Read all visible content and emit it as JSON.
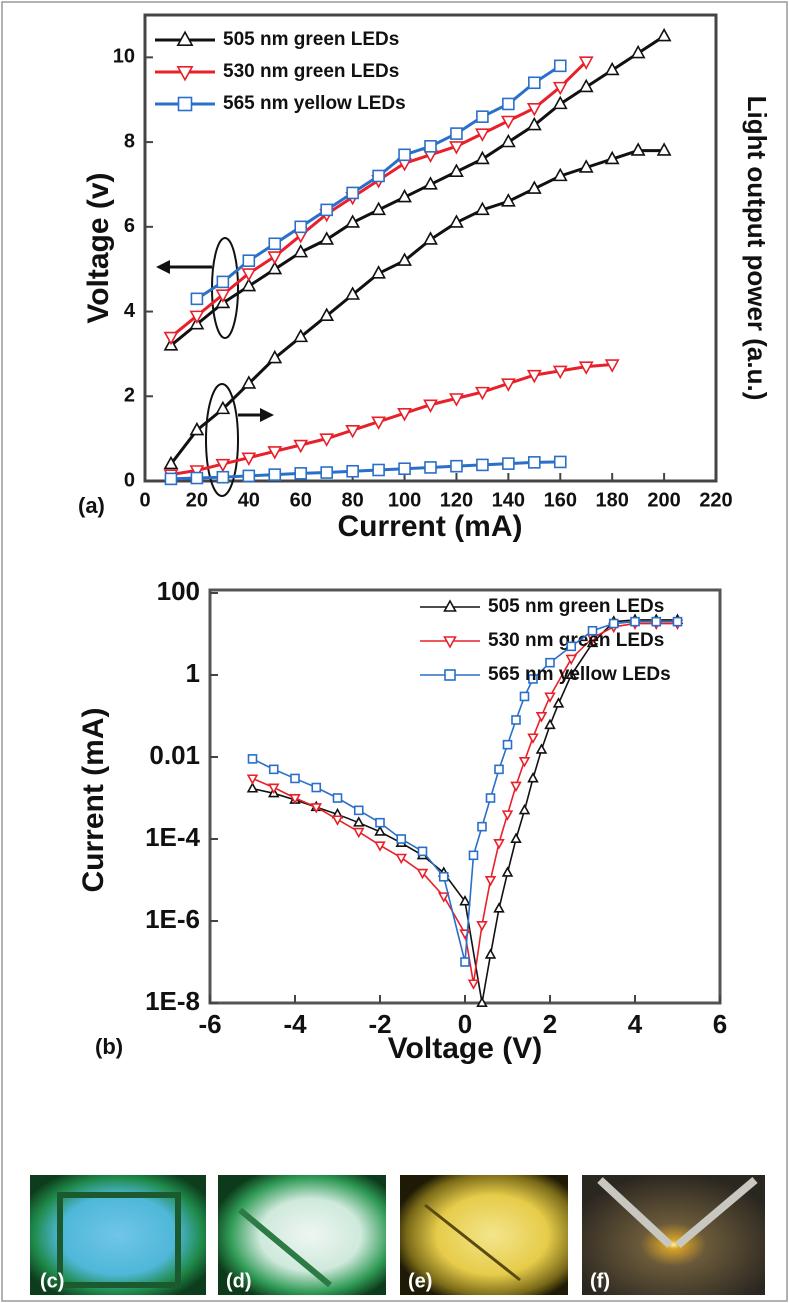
{
  "chart_data": [
    {
      "type": "line",
      "panel_label": "(a)",
      "x_label": "Current (mA)",
      "y_label": "Voltage (v)",
      "y2_label": "Light output power (a.u.)",
      "xlim": [
        0,
        220
      ],
      "xticks": [
        0,
        20,
        40,
        60,
        80,
        100,
        120,
        140,
        160,
        180,
        200,
        220
      ],
      "ylim": [
        0,
        11
      ],
      "yticks": [
        0,
        2,
        4,
        6,
        8,
        10
      ],
      "y2lim": [
        0,
        11
      ],
      "legend": "upper left",
      "x": [
        10,
        20,
        30,
        40,
        50,
        60,
        70,
        80,
        90,
        100,
        110,
        120,
        130,
        140,
        150,
        160,
        170,
        180,
        190,
        200
      ],
      "series": [
        {
          "name": "505 nm green LEDs",
          "color": "#111111",
          "marker": "triangle-up",
          "values": [
            3.2,
            3.7,
            4.2,
            4.6,
            5.0,
            5.4,
            5.7,
            6.1,
            6.4,
            6.7,
            7.0,
            7.3,
            7.6,
            8.0,
            8.4,
            8.9,
            9.3,
            9.7,
            10.1,
            10.5
          ]
        },
        {
          "name": "530 nm green LEDs",
          "color": "#e8202a",
          "marker": "triangle-down",
          "values": [
            3.4,
            3.9,
            4.4,
            4.9,
            5.3,
            5.8,
            6.3,
            6.7,
            7.1,
            7.5,
            7.7,
            7.9,
            8.2,
            8.5,
            8.8,
            9.3,
            9.9,
            null,
            null,
            null
          ]
        },
        {
          "name": "565 nm yellow LEDs",
          "color": "#2a6fc9",
          "marker": "square",
          "values": [
            null,
            4.3,
            4.7,
            5.2,
            5.6,
            6.0,
            6.4,
            6.8,
            7.2,
            7.7,
            7.9,
            8.2,
            8.6,
            8.9,
            9.4,
            9.8,
            null,
            null,
            null,
            null
          ]
        },
        {
          "axis": "y2",
          "color": "#111111",
          "marker": "triangle-up",
          "values": [
            0.4,
            1.2,
            1.7,
            2.3,
            2.9,
            3.4,
            3.9,
            4.4,
            4.9,
            5.2,
            5.7,
            6.1,
            6.4,
            6.6,
            6.9,
            7.2,
            7.4,
            7.6,
            7.8,
            7.8
          ]
        },
        {
          "axis": "y2",
          "color": "#e8202a",
          "marker": "triangle-down",
          "values": [
            0.15,
            0.25,
            0.4,
            0.55,
            0.7,
            0.85,
            1.0,
            1.2,
            1.4,
            1.6,
            1.8,
            1.95,
            2.1,
            2.3,
            2.5,
            2.6,
            2.7,
            2.75,
            null,
            null
          ]
        },
        {
          "axis": "y2",
          "color": "#2a6fc9",
          "marker": "square",
          "values": [
            0.05,
            0.07,
            0.09,
            0.12,
            0.15,
            0.18,
            0.2,
            0.23,
            0.26,
            0.29,
            0.32,
            0.35,
            0.38,
            0.41,
            0.44,
            0.45,
            null,
            null,
            null,
            null
          ]
        }
      ]
    },
    {
      "type": "line",
      "panel_label": "(b)",
      "x_label": "Voltage (V)",
      "y_label": "Current (mA)",
      "log_y": true,
      "xlim": [
        -6,
        6
      ],
      "xticks": [
        -6,
        -4,
        -2,
        0,
        2,
        4,
        6
      ],
      "ylim": [
        1e-08,
        100
      ],
      "yticks": [
        {
          "value": 1e-08,
          "label": "1E-8"
        },
        {
          "value": 1e-06,
          "label": "1E-6"
        },
        {
          "value": 0.0001,
          "label": "1E-4"
        },
        0.01,
        1,
        100
      ],
      "legend": "upper center",
      "series": [
        {
          "name": "505 nm green LEDs",
          "color": "#111111",
          "marker": "triangle-up",
          "x": [
            -5,
            -4.5,
            -4,
            -3.5,
            -3,
            -2.5,
            -2,
            -1.5,
            -1,
            -0.5,
            0,
            0.4,
            0.6,
            0.8,
            1,
            1.2,
            1.4,
            1.6,
            1.8,
            2,
            2.2,
            2.5,
            3,
            3.5,
            4,
            4.5,
            5
          ],
          "values": [
            0.0017,
            0.0013,
            0.0009,
            0.0006,
            0.0004,
            0.00025,
            0.00015,
            8e-05,
            4e-05,
            1.5e-05,
            3e-06,
            1e-08,
            1.5e-07,
            2e-06,
            1.5e-05,
            0.0001,
            0.0005,
            0.003,
            0.015,
            0.06,
            0.2,
            1,
            6,
            20,
            22,
            22,
            22
          ]
        },
        {
          "name": "530 nm green LEDs",
          "color": "#e8202a",
          "marker": "triangle-down",
          "x": [
            -5,
            -4.5,
            -4,
            -3.5,
            -3,
            -2.5,
            -2,
            -1.5,
            -1,
            -0.5,
            0,
            0.2,
            0.4,
            0.6,
            0.8,
            1,
            1.2,
            1.4,
            1.6,
            1.8,
            2,
            2.5,
            3,
            3.5,
            4,
            4.5,
            5
          ],
          "values": [
            0.003,
            0.0018,
            0.001,
            0.0006,
            0.0003,
            0.00015,
            7e-05,
            3.5e-05,
            1.5e-05,
            4e-06,
            5e-07,
            3e-08,
            8e-07,
            1e-05,
            8e-05,
            0.0004,
            0.002,
            0.008,
            0.03,
            0.1,
            0.3,
            2.5,
            8,
            15,
            18,
            18,
            18
          ]
        },
        {
          "name": "565 nm yellow LEDs",
          "color": "#2a6fc9",
          "marker": "square",
          "x": [
            -5,
            -4.5,
            -4,
            -3.5,
            -3,
            -2.5,
            -2,
            -1.5,
            -1,
            -0.5,
            0,
            0.2,
            0.4,
            0.6,
            0.8,
            1,
            1.2,
            1.4,
            1.6,
            2,
            2.5,
            3,
            3.5,
            4,
            4.5,
            5
          ],
          "values": [
            0.009,
            0.005,
            0.003,
            0.0018,
            0.001,
            0.0005,
            0.00025,
            0.0001,
            5e-05,
            1.2e-05,
            1e-07,
            4e-05,
            0.0002,
            0.001,
            0.005,
            0.02,
            0.08,
            0.3,
            0.8,
            2,
            5,
            12,
            18,
            20,
            20,
            20
          ]
        }
      ]
    }
  ],
  "photos": [
    {
      "label": "(c)"
    },
    {
      "label": "(d)"
    },
    {
      "label": "(e)"
    },
    {
      "label": "(f)"
    }
  ]
}
